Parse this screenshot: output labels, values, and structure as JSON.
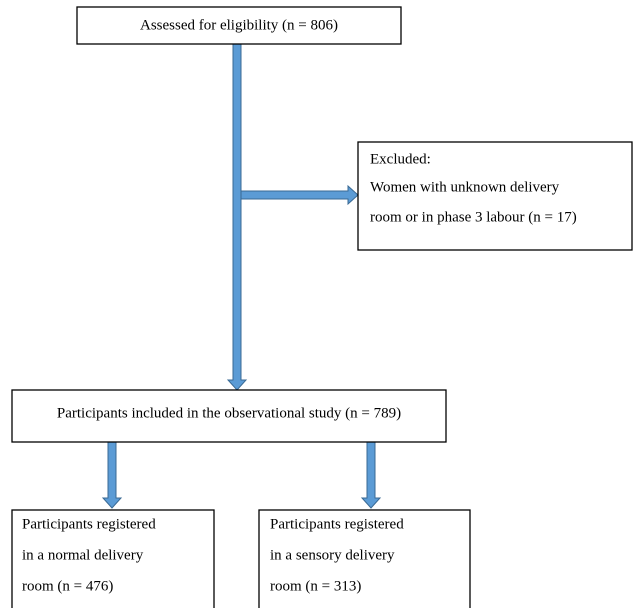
{
  "nodes": [
    {
      "label": "Assessed for eligibility (n = 806)"
    },
    {
      "lines": [
        "Excluded:",
        "Women with unknown delivery",
        "room or in phase 3 labour (n = 17)"
      ]
    },
    {
      "label": "Participants included in the observational study (n = 789)"
    },
    {
      "lines": [
        "Participants registered",
        "in a normal delivery",
        "room (n = 476)"
      ]
    },
    {
      "lines": [
        "Participants registered",
        "in a sensory delivery",
        "room (n = 313)"
      ]
    }
  ]
}
